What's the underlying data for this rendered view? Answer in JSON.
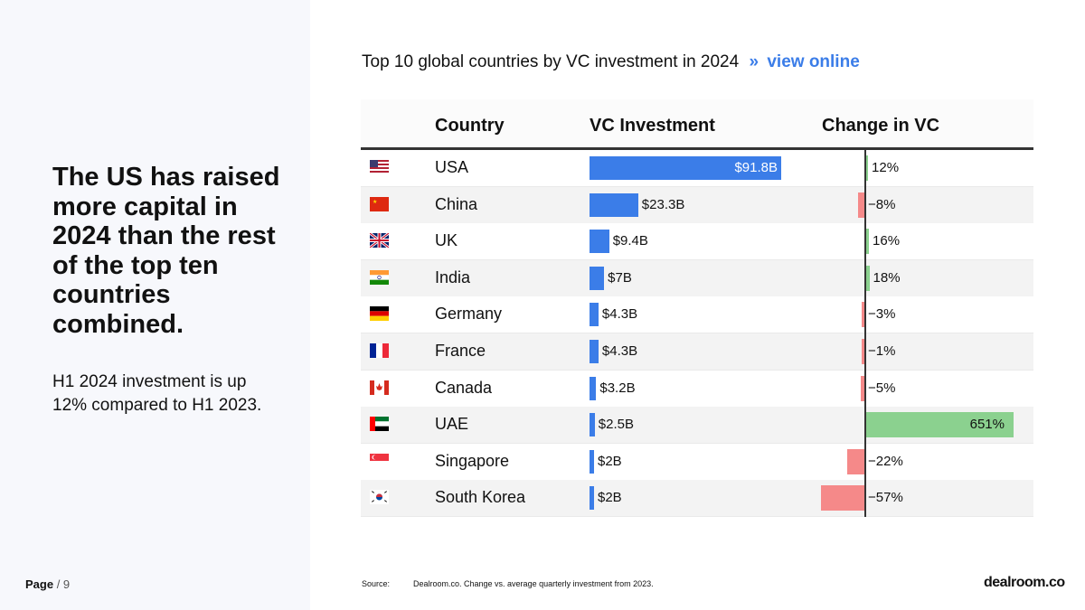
{
  "headline": "The US has raised more capital in 2024 than the rest of the top ten countries combined.",
  "subtext": "H1 2024 investment is up 12% compared to H1 2023.",
  "page": {
    "label": "Page",
    "sep": "/ 9"
  },
  "chart_title": {
    "text": "Top 10 global countries by VC investment in 2024",
    "chevron": "»",
    "link": "view online"
  },
  "source": {
    "label": "Source:",
    "text": "Dealroom.co. Change vs. average quarterly investment from 2023."
  },
  "logo": "dealroom.co",
  "colors": {
    "accent": "#3b7de8",
    "positive": "#8bd18f",
    "negative": "#f58989"
  },
  "chart_data": {
    "type": "table",
    "title": "Top 10 global countries by VC investment in 2024",
    "columns": [
      "Country",
      "VC Investment",
      "Change in VC"
    ],
    "units": {
      "investment": "$B",
      "change": "%"
    },
    "rows": [
      {
        "country": "USA",
        "flag": "us-flag-icon",
        "investment": 91.8,
        "investment_label": "$91.8B",
        "change": 12,
        "change_label": "12%"
      },
      {
        "country": "China",
        "flag": "china-flag-icon",
        "investment": 23.3,
        "investment_label": "$23.3B",
        "change": -8,
        "change_label": "−8%"
      },
      {
        "country": "UK",
        "flag": "uk-flag-icon",
        "investment": 9.4,
        "investment_label": "$9.4B",
        "change": 16,
        "change_label": "16%"
      },
      {
        "country": "India",
        "flag": "india-flag-icon",
        "investment": 7,
        "investment_label": "$7B",
        "change": 18,
        "change_label": "18%"
      },
      {
        "country": "Germany",
        "flag": "germany-flag-icon",
        "investment": 4.3,
        "investment_label": "$4.3B",
        "change": -3,
        "change_label": "−3%"
      },
      {
        "country": "France",
        "flag": "france-flag-icon",
        "investment": 4.3,
        "investment_label": "$4.3B",
        "change": -1,
        "change_label": "−1%"
      },
      {
        "country": "Canada",
        "flag": "canada-flag-icon",
        "investment": 3.2,
        "investment_label": "$3.2B",
        "change": -5,
        "change_label": "−5%"
      },
      {
        "country": "UAE",
        "flag": "uae-flag-icon",
        "investment": 2.5,
        "investment_label": "$2.5B",
        "change": 651,
        "change_label": "651%"
      },
      {
        "country": "Singapore",
        "flag": "singapore-flag-icon",
        "investment": 2,
        "investment_label": "$2B",
        "change": -22,
        "change_label": "−22%"
      },
      {
        "country": "South Korea",
        "flag": "south-korea-flag-icon",
        "investment": 2,
        "investment_label": "$2B",
        "change": -57,
        "change_label": "−57%"
      }
    ]
  }
}
